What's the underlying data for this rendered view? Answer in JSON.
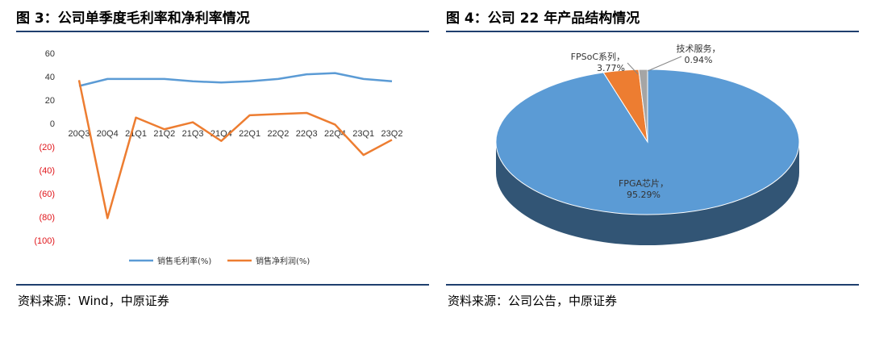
{
  "figure3": {
    "title": "图 3：公司单季度毛利率和净利率情况",
    "source": "资料来源：Wind，中原证券"
  },
  "figure4": {
    "title": "图 4：公司 22 年产品结构情况",
    "source": "资料来源：公司公告，中原证券"
  },
  "chart_data": [
    {
      "type": "line",
      "categories": [
        "20Q3",
        "20Q4",
        "21Q1",
        "21Q2",
        "21Q3",
        "21Q4",
        "22Q1",
        "22Q2",
        "22Q3",
        "22Q4",
        "23Q1",
        "23Q2"
      ],
      "y_ticks": [
        60,
        40,
        20,
        0,
        -20,
        -40,
        -60,
        -80,
        -100
      ],
      "y_tick_labels": [
        "60",
        "40",
        "20",
        "0",
        "(20)",
        "(40)",
        "(60)",
        "(80)",
        "(100)"
      ],
      "ylim": [
        -100,
        60
      ],
      "negative_tick_color": "#e0161b",
      "series": [
        {
          "name": "销售毛利率(%)",
          "color": "#5b9bd5",
          "values": [
            32,
            38,
            38,
            38,
            36,
            35,
            36,
            38,
            42,
            43,
            38,
            36
          ]
        },
        {
          "name": "销售净利润(%)",
          "color": "#ed7d31",
          "values": [
            37,
            -81,
            5,
            -5,
            1,
            -15,
            7,
            8,
            9,
            -1,
            -27,
            -14
          ]
        }
      ],
      "legend_position": "bottom"
    },
    {
      "type": "pie",
      "slices": [
        {
          "label": "FPGA芯片",
          "value": 95.29,
          "value_label": "95.29%",
          "color": "#5b9bd5"
        },
        {
          "label": "FPSoC系列",
          "value": 3.77,
          "value_label": "3.77%",
          "color": "#ed7d31"
        },
        {
          "label": "技术服务",
          "value": 0.94,
          "value_label": "0.94%",
          "color": "#a5a5a5"
        }
      ],
      "three_d": true
    }
  ]
}
